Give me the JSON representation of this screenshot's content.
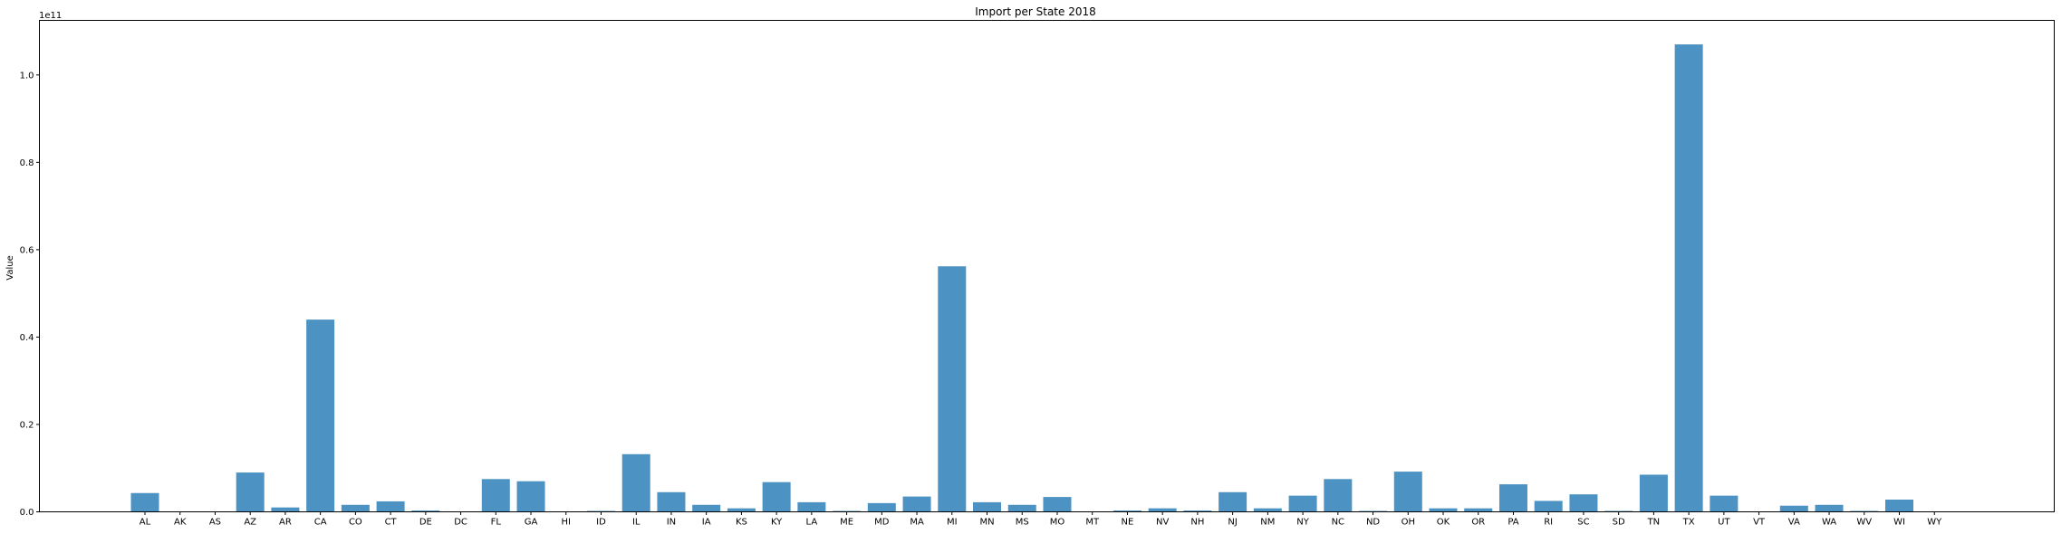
{
  "chart_data": {
    "type": "bar",
    "title": "Import per State 2018",
    "xlabel": "",
    "ylabel": "Value",
    "y_offset_text": "1e11",
    "ylim": [
      0,
      1.125
    ],
    "y_ticks": [
      "0.0",
      "0.2",
      "0.4",
      "0.6",
      "0.8",
      "1.0"
    ],
    "y_tick_values": [
      0.0,
      0.2,
      0.4,
      0.6,
      0.8,
      1.0
    ],
    "bar_color": "#4c93c3",
    "grid": false,
    "categories": [
      "AL",
      "AK",
      "AS",
      "AZ",
      "AR",
      "CA",
      "CO",
      "CT",
      "DE",
      "DC",
      "FL",
      "GA",
      "HI",
      "ID",
      "IL",
      "IN",
      "IA",
      "KS",
      "KY",
      "LA",
      "ME",
      "MD",
      "MA",
      "MI",
      "MN",
      "MS",
      "MO",
      "MT",
      "NE",
      "NV",
      "NH",
      "NJ",
      "NM",
      "NY",
      "NC",
      "ND",
      "OH",
      "OK",
      "OR",
      "PA",
      "RI",
      "SC",
      "SD",
      "TN",
      "TX",
      "UT",
      "VT",
      "VA",
      "WA",
      "WV",
      "WI",
      "WY"
    ],
    "values": [
      0.043,
      0.0,
      0.0,
      0.09,
      0.01,
      0.44,
      0.016,
      0.024,
      0.003,
      0.0,
      0.075,
      0.07,
      0.0,
      0.002,
      0.132,
      0.045,
      0.016,
      0.008,
      0.068,
      0.022,
      0.002,
      0.02,
      0.035,
      0.562,
      0.022,
      0.016,
      0.034,
      0.001,
      0.003,
      0.008,
      0.003,
      0.045,
      0.008,
      0.037,
      0.075,
      0.002,
      0.092,
      0.008,
      0.008,
      0.063,
      0.025,
      0.04,
      0.002,
      0.085,
      1.07,
      0.037,
      0.0,
      0.014,
      0.016,
      0.002,
      0.028,
      0.0
    ]
  }
}
